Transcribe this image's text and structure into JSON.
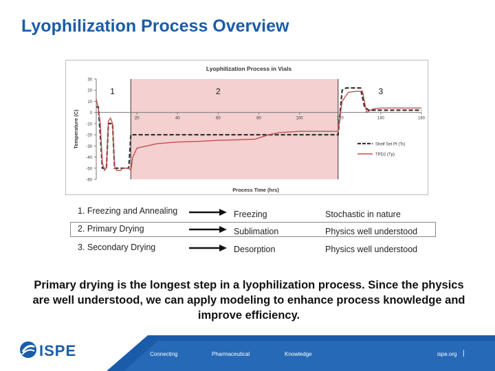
{
  "slide": {
    "title": "Lyophilization Process Overview",
    "summary": "Primary drying is the longest step in a lyophilization process.  Since the physics are well understood, we can apply modeling to enhance process knowledge and improve efficiency."
  },
  "chart_data": {
    "type": "line",
    "title": "Lyophilization Process in Vials",
    "xlabel": "Process Time (hrs)",
    "ylabel": "Temperature (C)",
    "xlim": [
      0,
      160
    ],
    "ylim": [
      -60,
      30
    ],
    "xticks": [
      20,
      40,
      60,
      80,
      100,
      120,
      140,
      160
    ],
    "yticks": [
      30,
      20,
      10,
      0,
      -10,
      -20,
      -30,
      -40,
      -50,
      -60
    ],
    "phase_labels": [
      {
        "label": "1",
        "x": 8
      },
      {
        "label": "2",
        "x": 60
      },
      {
        "label": "3",
        "x": 140
      }
    ],
    "phase_boundaries": [
      17,
      119
    ],
    "shaded_region": [
      17,
      119
    ],
    "legend_position": "lower-right",
    "series": [
      {
        "name": "Shelf Set Pt (Ts)",
        "color": "#333333",
        "style": "dashed",
        "x": [
          0,
          1,
          2,
          3,
          4,
          5,
          6,
          7,
          8,
          9,
          10,
          11,
          12,
          13,
          14,
          15,
          16,
          17,
          18,
          119,
          121,
          123,
          130,
          132,
          134,
          140,
          150,
          160
        ],
        "y": [
          5,
          5,
          -20,
          -50,
          -50,
          -50,
          -10,
          -10,
          -10,
          -50,
          -50,
          -50,
          -50,
          -50,
          -50,
          -50,
          -50,
          -20,
          -20,
          -20,
          20,
          22,
          22,
          5,
          2,
          2,
          2,
          2
        ]
      },
      {
        "name": "TPD2 (Tp)",
        "color": "#c0504d",
        "style": "solid",
        "x": [
          0,
          1,
          2,
          3,
          4,
          5,
          6,
          7,
          8,
          9,
          10,
          11,
          12,
          13,
          14,
          15,
          16,
          17,
          18,
          20,
          25,
          30,
          40,
          50,
          60,
          70,
          78,
          85,
          90,
          100,
          110,
          117,
          119,
          121,
          124,
          128,
          131,
          133,
          136,
          140,
          150,
          160
        ],
        "y": [
          12,
          3,
          -10,
          -45,
          -52,
          -50,
          -8,
          -5,
          -10,
          -48,
          -52,
          -52,
          -52,
          -50,
          -50,
          -50,
          -50,
          -52,
          -40,
          -32,
          -30,
          -28,
          -26.5,
          -26,
          -25,
          -24.5,
          -24,
          -20,
          -18,
          -17,
          -17,
          -17,
          -17,
          10,
          18,
          19,
          19,
          0,
          3,
          4,
          4,
          4
        ]
      }
    ]
  },
  "steps": [
    {
      "step": "1. Freezing and Annealing",
      "process": "Freezing",
      "nature": "Stochastic in nature"
    },
    {
      "step": "2. Primary Drying",
      "process": "Sublimation",
      "nature": "Physics well understood"
    },
    {
      "step": "3. Secondary Drying",
      "process": "Desorption",
      "nature": "Physics well understood"
    }
  ],
  "footer": {
    "logo": "ISPE",
    "tagline": [
      "Connecting",
      "Pharmaceutical",
      "Knowledge"
    ],
    "url": "ispe.org"
  },
  "colors": {
    "title": "#1a5ca8",
    "shaded": "#f4d0d0",
    "footer": "#1a5ca8"
  }
}
